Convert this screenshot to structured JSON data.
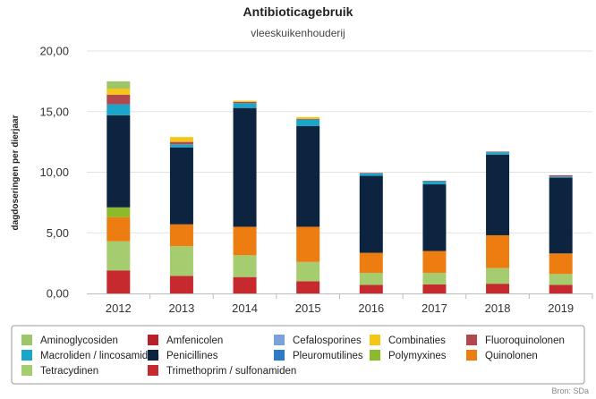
{
  "chart_data": {
    "type": "bar",
    "stacked": true,
    "title": "Antibioticagebruik",
    "subtitle": "vleeskuikenhouderij",
    "ylabel": "dagdoseringen per dierjaar",
    "xlabel": "",
    "ylim": [
      0,
      20
    ],
    "yticks": [
      "0,00",
      "5,00",
      "10,00",
      "15,00",
      "20,00"
    ],
    "grid": true,
    "legend_position": "bottom",
    "source": "Bron: SDa",
    "categories": [
      "2012",
      "2013",
      "2014",
      "2015",
      "2016",
      "2017",
      "2018",
      "2019"
    ],
    "series": [
      {
        "name": "Trimethoprim / sulfonamiden",
        "color": "#c62a2e",
        "values": [
          1.9,
          1.45,
          1.35,
          1.0,
          0.7,
          0.75,
          0.8,
          0.7
        ]
      },
      {
        "name": "Tetracydinen",
        "color": "#a5cc6e",
        "values": [
          2.4,
          2.45,
          1.8,
          1.6,
          1.0,
          0.95,
          1.3,
          0.9
        ]
      },
      {
        "name": "Quinolonen",
        "color": "#ee7d11",
        "values": [
          2.0,
          1.8,
          2.35,
          2.9,
          1.65,
          1.8,
          2.7,
          1.7
        ]
      },
      {
        "name": "Polymyxines",
        "color": "#8bbb2c",
        "values": [
          0.8,
          0,
          0,
          0,
          0,
          0,
          0,
          0
        ]
      },
      {
        "name": "Penicillines",
        "color": "#0d2440",
        "values": [
          7.6,
          6.35,
          9.8,
          8.3,
          6.35,
          5.5,
          6.65,
          6.25
        ]
      },
      {
        "name": "Macroliden / lincosamiden",
        "color": "#1aa5c9",
        "values": [
          0.9,
          0.25,
          0.4,
          0.55,
          0.2,
          0.25,
          0.2,
          0.1
        ]
      },
      {
        "name": "Fluoroquinolonen",
        "color": "#b0484d",
        "values": [
          0.8,
          0.2,
          0.1,
          0.05,
          0.05,
          0.05,
          0.05,
          0.1
        ]
      },
      {
        "name": "Combinaties",
        "color": "#f5c518",
        "values": [
          0.5,
          0.4,
          0.1,
          0.15,
          0,
          0,
          0,
          0
        ]
      },
      {
        "name": "Cefalosporines",
        "color": "#7aa2d8",
        "values": [
          0,
          0,
          0,
          0,
          0,
          0,
          0,
          0
        ]
      },
      {
        "name": "Amfenicolen",
        "color": "#b72127",
        "values": [
          0,
          0,
          0,
          0,
          0,
          0,
          0,
          0
        ]
      },
      {
        "name": "Aminoglycosiden",
        "color": "#9dc66b",
        "values": [
          0.6,
          0,
          0,
          0,
          0,
          0,
          0,
          0
        ]
      },
      {
        "name": "Pleuromutilines",
        "color": "#2f7ac8",
        "values": [
          0,
          0,
          0,
          0,
          0,
          0,
          0,
          0
        ]
      }
    ],
    "legend": [
      {
        "name": "Aminoglycosiden",
        "color": "#9dc66b"
      },
      {
        "name": "Amfenicolen",
        "color": "#b72127"
      },
      {
        "name": "Cefalosporines",
        "color": "#7aa2d8"
      },
      {
        "name": "Combinaties",
        "color": "#f5c518"
      },
      {
        "name": "Fluoroquinolonen",
        "color": "#b0484d"
      },
      {
        "name": "Macroliden / lincosamiden",
        "color": "#1aa5c9"
      },
      {
        "name": "Penicillines",
        "color": "#0d2440"
      },
      {
        "name": "Pleuromutilines",
        "color": "#2f7ac8"
      },
      {
        "name": "Polymyxines",
        "color": "#8bbb2c"
      },
      {
        "name": "Quinolonen",
        "color": "#ee7d11"
      },
      {
        "name": "Tetracydinen",
        "color": "#a5cc6e"
      },
      {
        "name": "Trimethoprim / sulfonamiden",
        "color": "#c62a2e"
      }
    ]
  }
}
